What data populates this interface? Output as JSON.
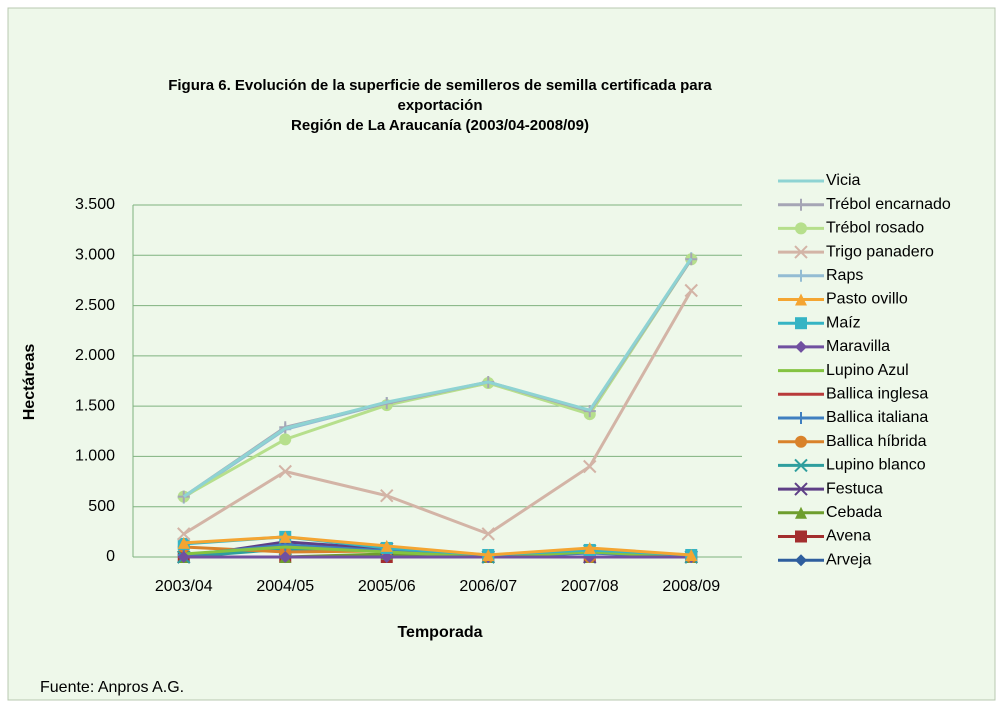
{
  "chart_data": {
    "type": "line",
    "title": [
      "Figura 6. Evolución de la superficie de semilleros de semilla certificada para",
      "exportación",
      "Región de La Araucanía  (2003/04-2008/09)"
    ],
    "x_label": "Temporada",
    "y_label": "Hectáreas",
    "source": "Fuente: Anpros A.G.",
    "categories": [
      "2003/04",
      "2004/05",
      "2005/06",
      "2006/07",
      "2007/08",
      "2008/09"
    ],
    "ylim": [
      0,
      3500
    ],
    "yticks": [
      0,
      500,
      {
        "value": 1000,
        "label": "1.000"
      },
      {
        "value": 1500,
        "label": "1.500"
      },
      {
        "value": 2000,
        "label": "2.000"
      },
      {
        "value": 2500,
        "label": "2.500"
      },
      {
        "value": 3000,
        "label": "3.000"
      },
      {
        "value": 3500,
        "label": "3.500"
      }
    ],
    "grid": true,
    "legend": "right",
    "series": [
      {
        "name": "Vicia",
        "color": "#8ed3d3",
        "marker": "none",
        "values": [
          600,
          1280,
          1540,
          1740,
          1460,
          2970
        ]
      },
      {
        "name": "Trébol encarnado",
        "color": "#a5a5b5",
        "marker": "plus",
        "values": [
          600,
          1290,
          1530,
          1740,
          1450,
          2960
        ]
      },
      {
        "name": "Trébol rosado",
        "color": "#b6df8c",
        "marker": "circle",
        "values": [
          600,
          1170,
          1510,
          1730,
          1420,
          2960
        ]
      },
      {
        "name": "Trigo panadero",
        "color": "#d3b4a6",
        "marker": "x",
        "values": [
          230,
          850,
          610,
          230,
          900,
          2650
        ]
      },
      {
        "name": "Raps",
        "color": "#93bcd3",
        "marker": "plus",
        "values": [
          590,
          1270,
          1530,
          1730,
          1450,
          2970
        ]
      },
      {
        "name": "Pasto ovillo",
        "color": "#f4a532",
        "marker": "triangle",
        "values": [
          140,
          200,
          110,
          20,
          90,
          20
        ]
      },
      {
        "name": "Maíz",
        "color": "#35b4c4",
        "marker": "square",
        "values": [
          130,
          200,
          90,
          20,
          70,
          20
        ]
      },
      {
        "name": "Maravilla",
        "color": "#7050a0",
        "marker": "diamond",
        "values": [
          0,
          0,
          0,
          0,
          0,
          0
        ]
      },
      {
        "name": "Lupino Azul",
        "color": "#84c341",
        "marker": "none",
        "values": [
          30,
          100,
          50,
          0,
          50,
          0
        ]
      },
      {
        "name": "Ballica inglesa",
        "color": "#b83a3a",
        "marker": "none",
        "values": [
          0,
          0,
          0,
          0,
          0,
          0
        ]
      },
      {
        "name": "Ballica italiana",
        "color": "#3f7fc0",
        "marker": "plus",
        "values": [
          20,
          120,
          60,
          0,
          40,
          0
        ]
      },
      {
        "name": "Ballica híbrida",
        "color": "#d9822b",
        "marker": "circle",
        "values": [
          100,
          50,
          60,
          0,
          0,
          0
        ]
      },
      {
        "name": "Lupino blanco",
        "color": "#2e9e9e",
        "marker": "x",
        "values": [
          0,
          80,
          60,
          0,
          60,
          0
        ]
      },
      {
        "name": "Festuca",
        "color": "#5e3f86",
        "marker": "x",
        "values": [
          0,
          150,
          80,
          0,
          0,
          0
        ]
      },
      {
        "name": "Cebada",
        "color": "#6e9e2e",
        "marker": "triangle",
        "values": [
          0,
          0,
          30,
          0,
          0,
          0
        ]
      },
      {
        "name": "Avena",
        "color": "#a32e2e",
        "marker": "square",
        "values": [
          0,
          0,
          0,
          0,
          0,
          0
        ]
      },
      {
        "name": "Arveja",
        "color": "#2e5e9e",
        "marker": "diamond",
        "values": [
          0,
          0,
          0,
          0,
          0,
          0
        ]
      }
    ]
  }
}
